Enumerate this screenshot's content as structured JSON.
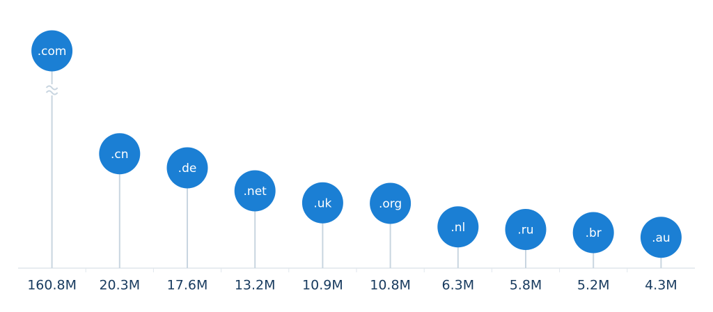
{
  "chart_data": {
    "type": "lollipop",
    "categories": [
      ".com",
      ".cn",
      ".de",
      ".net",
      ".uk",
      ".org",
      ".nl",
      ".ru",
      ".br",
      ".au"
    ],
    "values": [
      160.8,
      20.3,
      17.6,
      13.2,
      10.9,
      10.8,
      6.3,
      5.8,
      5.2,
      4.3
    ],
    "value_labels": [
      "160.8M",
      "20.3M",
      "17.6M",
      "13.2M",
      "10.9M",
      "10.8M",
      "6.3M",
      "5.8M",
      "5.2M",
      "4.3M"
    ],
    "ylim": [
      0,
      40
    ],
    "color": "#1b7fd4",
    "stem_color": "#c8d5e0",
    "axis_break": true
  }
}
